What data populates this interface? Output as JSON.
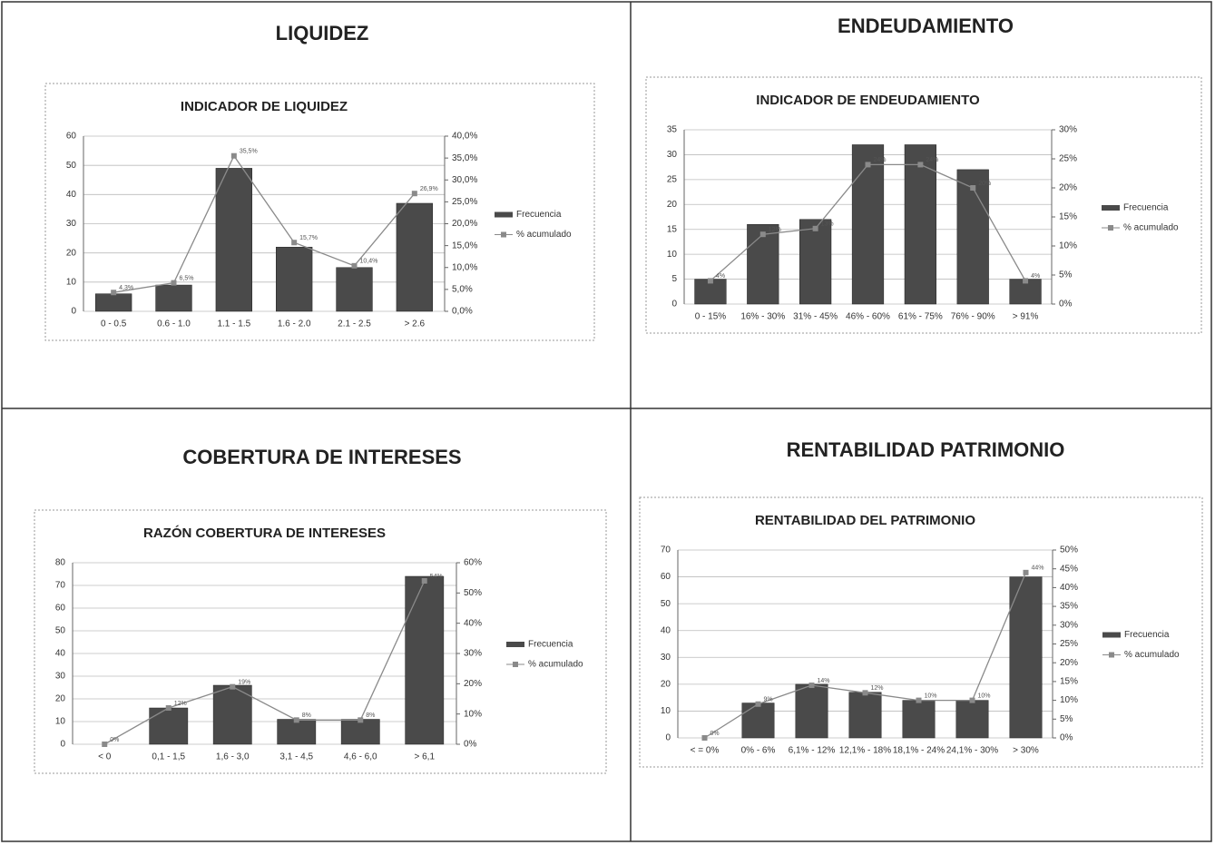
{
  "panels": [
    "LIQUIDEZ",
    "ENDEUDAMIENTO",
    "COBERTURA DE INTERESES",
    "RENTABILIDAD PATRIMONIO"
  ],
  "chart_data": [
    {
      "type": "bar",
      "title": "INDICADOR DE LIQUIDEZ",
      "categories": [
        "0 - 0.5",
        "0.6 - 1.0",
        "1.1 - 1.5",
        "1.6 - 2.0",
        "2.1 - 2.5",
        "> 2.6"
      ],
      "series": [
        {
          "name": "Frecuencia",
          "color": "#4a4a4a",
          "values": [
            6,
            9,
            49,
            22,
            15,
            37
          ]
        },
        {
          "name": "% acumulado",
          "color": "#8a8a8a",
          "axis": "y2",
          "values": [
            4.3,
            6.5,
            35.5,
            15.7,
            10.4,
            26.9
          ],
          "value_labels": [
            "4,3%",
            "6,5%",
            "35,5%",
            "15,7%",
            "10,4%",
            "26,9%"
          ]
        }
      ],
      "ylim": [
        0,
        60
      ],
      "yticks": [
        0,
        10,
        20,
        30,
        40,
        50,
        60
      ],
      "y2lim": [
        0,
        40
      ],
      "y2ticks": [
        {
          "value": 0,
          "label": "0,0%"
        },
        {
          "value": 5,
          "label": "5,0%"
        },
        {
          "value": 10,
          "label": "10,0%"
        },
        {
          "value": 15,
          "label": "15,0%"
        },
        {
          "value": 20,
          "label": "20,0%"
        },
        {
          "value": 25,
          "label": "25,0%"
        },
        {
          "value": 30,
          "label": "30,0%"
        },
        {
          "value": 35,
          "label": "35,0%"
        },
        {
          "value": 40,
          "label": "40,0%"
        }
      ],
      "grid": true,
      "legend": "right"
    },
    {
      "type": "bar",
      "title": "INDICADOR DE ENDEUDAMIENTO",
      "categories": [
        "0 - 15%",
        "16% - 30%",
        "31% - 45%",
        "46% - 60%",
        "61% - 75%",
        "76% - 90%",
        "> 91%"
      ],
      "series": [
        {
          "name": "Frecuencia",
          "color": "#4a4a4a",
          "values": [
            5,
            16,
            17,
            32,
            32,
            27,
            5
          ]
        },
        {
          "name": "% acumulado",
          "color": "#8a8a8a",
          "axis": "y2",
          "values": [
            4,
            12,
            13,
            24,
            24,
            20,
            4
          ],
          "value_labels": [
            "4%",
            "12%",
            "13%",
            "24%",
            "24%",
            "20%",
            "4%"
          ]
        }
      ],
      "ylim": [
        0,
        35
      ],
      "yticks": [
        0,
        5,
        10,
        15,
        20,
        25,
        30,
        35
      ],
      "y2lim": [
        0,
        30
      ],
      "y2ticks": [
        {
          "value": 0,
          "label": "0%"
        },
        {
          "value": 5,
          "label": "5%"
        },
        {
          "value": 10,
          "label": "10%"
        },
        {
          "value": 15,
          "label": "15%"
        },
        {
          "value": 20,
          "label": "20%"
        },
        {
          "value": 25,
          "label": "25%"
        },
        {
          "value": 30,
          "label": "30%"
        }
      ],
      "grid": true,
      "legend": "right"
    },
    {
      "type": "bar",
      "title": "RAZÓN COBERTURA DE INTERESES",
      "categories": [
        "< 0",
        "0,1 - 1,5",
        "1,6 - 3,0",
        "3,1 - 4,5",
        "4,6 - 6,0",
        "> 6,1"
      ],
      "series": [
        {
          "name": "Frecuencia",
          "color": "#4a4a4a",
          "values": [
            0,
            16,
            26,
            11,
            11,
            74
          ]
        },
        {
          "name": "% acumulado",
          "color": "#8a8a8a",
          "axis": "y2",
          "values": [
            0,
            12,
            19,
            8,
            8,
            54
          ],
          "value_labels": [
            "0%",
            "12%",
            "19%",
            "8%",
            "8%",
            "54%"
          ]
        }
      ],
      "ylim": [
        0,
        80
      ],
      "yticks": [
        0,
        10,
        20,
        30,
        40,
        50,
        60,
        70,
        80
      ],
      "y2lim": [
        0,
        60
      ],
      "y2ticks": [
        {
          "value": 0,
          "label": "0%"
        },
        {
          "value": 10,
          "label": "10%"
        },
        {
          "value": 20,
          "label": "20%"
        },
        {
          "value": 30,
          "label": "30%"
        },
        {
          "value": 40,
          "label": "40%"
        },
        {
          "value": 50,
          "label": "50%"
        },
        {
          "value": 60,
          "label": "60%"
        }
      ],
      "grid": true,
      "legend": "right"
    },
    {
      "type": "bar",
      "title": "RENTABILIDAD DEL PATRIMONIO",
      "categories": [
        "< = 0%",
        "0% - 6%",
        "6,1% - 12%",
        "12,1% - 18%",
        "18,1% - 24%",
        "24,1% - 30%",
        "> 30%"
      ],
      "series": [
        {
          "name": "Frecuencia",
          "color": "#4a4a4a",
          "values": [
            0,
            13,
            20,
            17,
            14,
            14,
            60
          ]
        },
        {
          "name": "% acumulado",
          "color": "#8a8a8a",
          "axis": "y2",
          "values": [
            0,
            9,
            14,
            12,
            10,
            10,
            44
          ],
          "value_labels": [
            "0%",
            "9%",
            "14%",
            "12%",
            "10%",
            "10%",
            "44%"
          ]
        }
      ],
      "ylim": [
        0,
        70
      ],
      "yticks": [
        0,
        10,
        20,
        30,
        40,
        50,
        60,
        70
      ],
      "y2lim": [
        0,
        50
      ],
      "y2ticks": [
        {
          "value": 0,
          "label": "0%"
        },
        {
          "value": 5,
          "label": "5%"
        },
        {
          "value": 10,
          "label": "10%"
        },
        {
          "value": 15,
          "label": "15%"
        },
        {
          "value": 20,
          "label": "20%"
        },
        {
          "value": 25,
          "label": "25%"
        },
        {
          "value": 30,
          "label": "30%"
        },
        {
          "value": 35,
          "label": "35%"
        },
        {
          "value": 40,
          "label": "40%"
        },
        {
          "value": 45,
          "label": "45%"
        },
        {
          "value": 50,
          "label": "50%"
        }
      ],
      "grid": true,
      "legend": "right"
    }
  ]
}
